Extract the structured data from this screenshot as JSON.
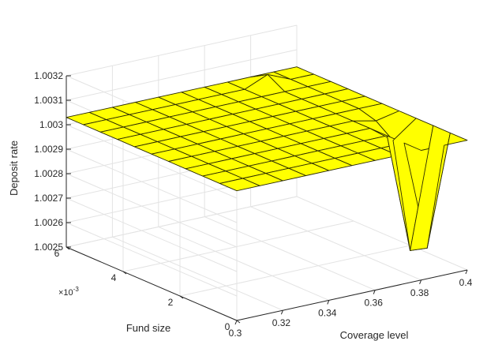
{
  "chart_data": {
    "type": "surface",
    "title": "",
    "xlabel": "Coverage level",
    "ylabel": "Fund size",
    "zlabel": "Deposit rate",
    "xlim": [
      0.3,
      0.4
    ],
    "ylim": [
      0,
      0.006
    ],
    "zlim": [
      1.0025,
      1.0032
    ],
    "x_ticks": [
      "0.3",
      "0.32",
      "0.34",
      "0.36",
      "0.38",
      "0.4"
    ],
    "y_ticks": [
      "0",
      "2",
      "4",
      "6"
    ],
    "y_exponent": "-3",
    "z_ticks": [
      "1.0025",
      "1.0026",
      "1.0027",
      "1.0028",
      "1.0029",
      "1.003",
      "1.0031",
      "1.0032"
    ],
    "grid": true,
    "surface_color": "#ffff00",
    "edge_color": "#2b2b00",
    "x": [
      0.3,
      0.31,
      0.32,
      0.33,
      0.34,
      0.35,
      0.36,
      0.37,
      0.38,
      0.39,
      0.4
    ],
    "y": [
      0,
      0.0006,
      0.0012,
      0.0018,
      0.0024,
      0.003,
      0.0036,
      0.0042,
      0.0048,
      0.0054,
      0.006
    ],
    "z_default": 1.00303,
    "z_anomalies": [
      {
        "x": 0.39,
        "y": 0.0006,
        "z": 1.00258
      },
      {
        "x": 0.39,
        "y": 0.0012,
        "z": 1.00254
      },
      {
        "x": 0.39,
        "y": 0.0018,
        "z": 1.00296
      },
      {
        "x": 0.39,
        "y": 0.0024,
        "z": 1.00301
      },
      {
        "x": 0.38,
        "y": 0.0054,
        "z": 1.00307
      }
    ]
  }
}
